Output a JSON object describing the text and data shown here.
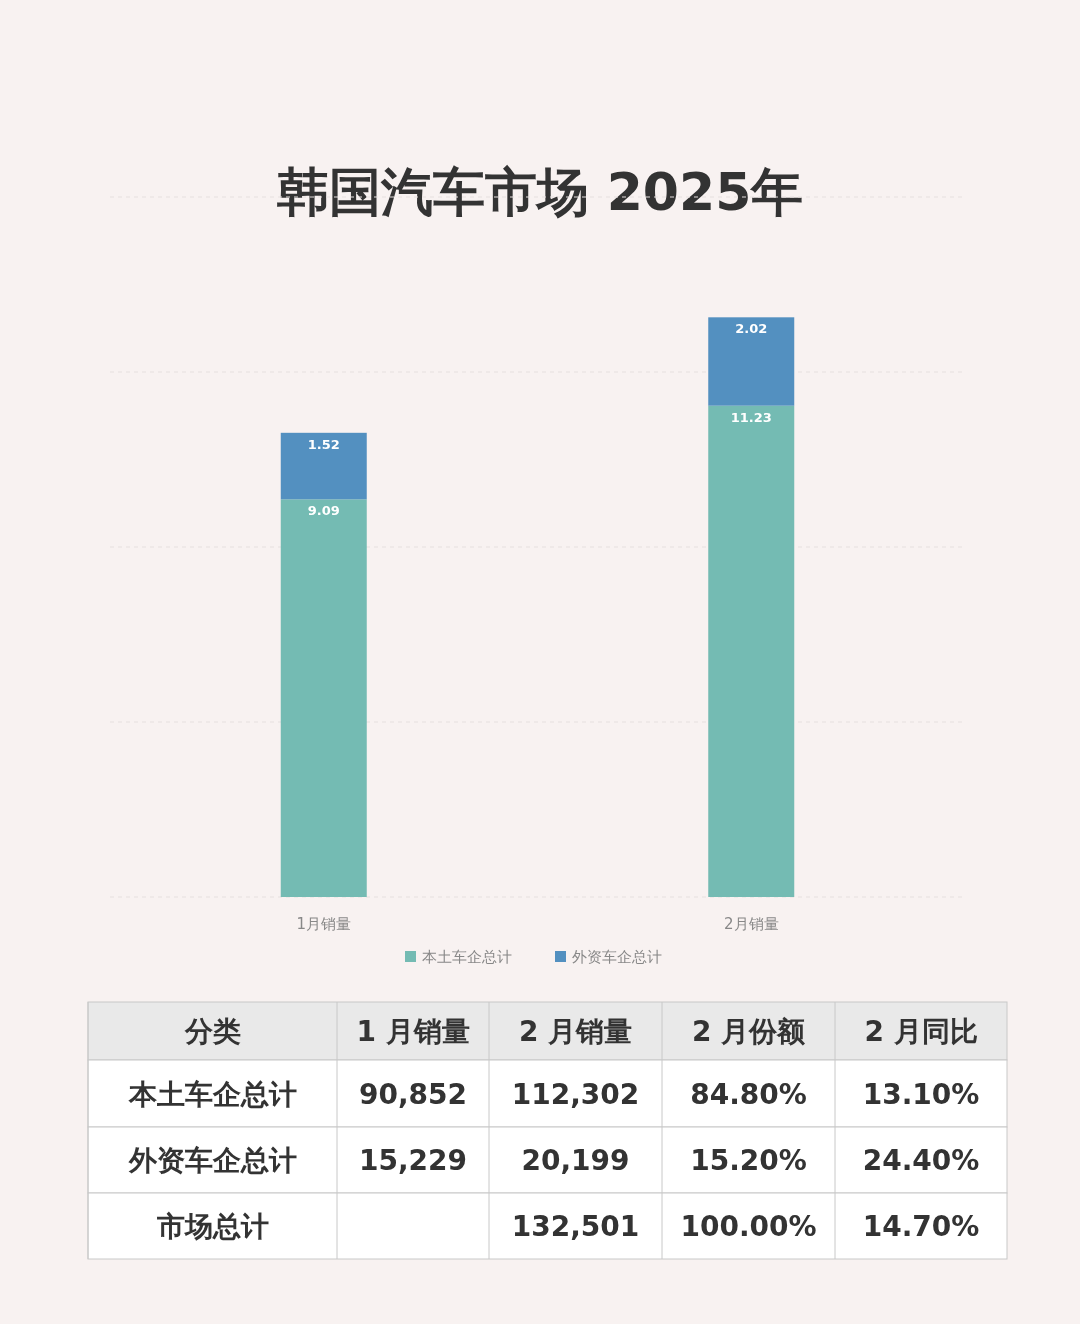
{
  "chart_data": {
    "type": "bar",
    "title": "韩国汽车市场 2025年",
    "categories": [
      "1月销量",
      "2月销量"
    ],
    "series": [
      {
        "name": "本土车企总计",
        "color": "#74bbb3",
        "values": [
          9.09,
          11.23
        ]
      },
      {
        "name": "外资车企总计",
        "color": "#5390c0",
        "values": [
          1.52,
          2.02
        ]
      }
    ],
    "stacked": true,
    "data_labels": true,
    "ylim": [
      0,
      16
    ],
    "yticks": [
      {
        "value": 0,
        "label": null
      },
      {
        "value": 4,
        "label": null
      },
      {
        "value": 8,
        "label": null
      },
      {
        "value": 12,
        "label": null
      },
      {
        "value": 16,
        "label": null
      }
    ],
    "tick_labels": "x",
    "grid": "y",
    "legend": "bottom",
    "annotations": [
      "分类",
      "1 月销量",
      "2 月销量",
      "2 月份额",
      "2 月同比",
      "本土车企总计",
      "90,852",
      "112,302",
      "84.80%",
      "13.10%",
      "外资车企总计",
      "15,229",
      "20,199",
      "15.20%",
      "24.40%",
      "市场总计",
      null,
      "132,501",
      "100.00%",
      "14.70%"
    ]
  }
}
